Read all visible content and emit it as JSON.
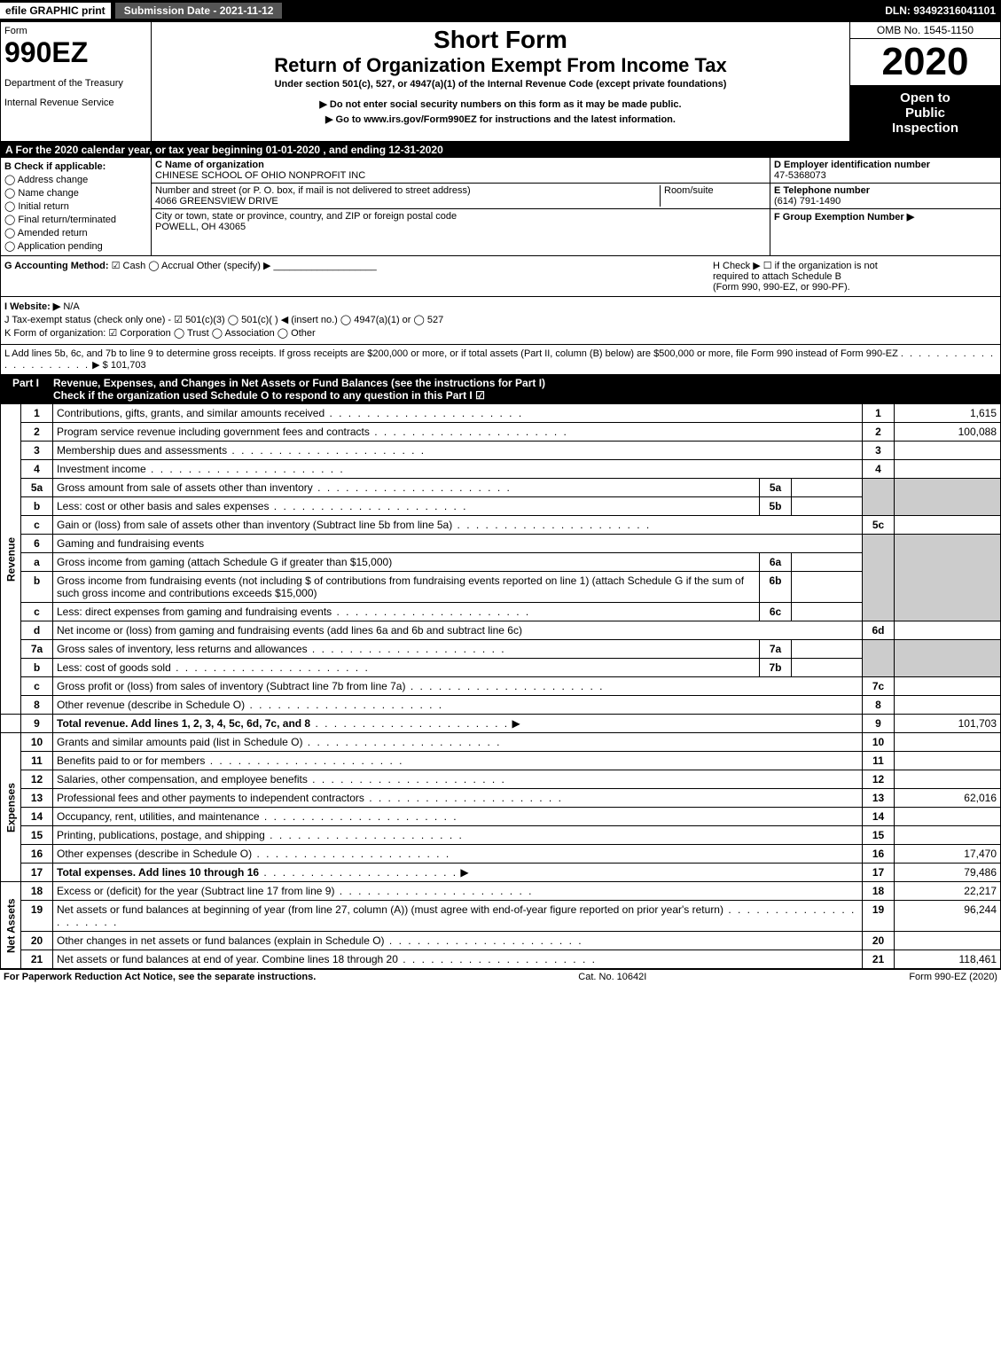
{
  "top": {
    "efile": "efile GRAPHIC print",
    "submission_date_label": "Submission Date - 2021-11-12",
    "dln": "DLN: 93492316041101"
  },
  "header": {
    "form_word": "Form",
    "form_number": "990EZ",
    "dept1": "Department of the Treasury",
    "dept2": "Internal Revenue Service",
    "short_form": "Short Form",
    "title": "Return of Organization Exempt From Income Tax",
    "subtitle": "Under section 501(c), 527, or 4947(a)(1) of the Internal Revenue Code (except private foundations)",
    "warn": "▶ Do not enter social security numbers on this form as it may be made public.",
    "goto": "▶ Go to www.irs.gov/Form990EZ for instructions and the latest information.",
    "omb": "OMB No. 1545-1150",
    "year": "2020",
    "inspection1": "Open to",
    "inspection2": "Public",
    "inspection3": "Inspection"
  },
  "period": "A For the 2020 calendar year, or tax year beginning 01-01-2020 , and ending 12-31-2020",
  "sectionB": {
    "label": "B Check if applicable:",
    "opts": [
      "Address change",
      "Name change",
      "Initial return",
      "Final return/terminated",
      "Amended return",
      "Application pending"
    ]
  },
  "sectionC": {
    "name_label": "C Name of organization",
    "name": "CHINESE SCHOOL OF OHIO NONPROFIT INC",
    "addr_label": "Number and street (or P. O. box, if mail is not delivered to street address)",
    "addr": "4066 GREENSVIEW DRIVE",
    "room_label": "Room/suite",
    "city_label": "City or town, state or province, country, and ZIP or foreign postal code",
    "city": "POWELL, OH  43065"
  },
  "sectionD": {
    "ein_label": "D Employer identification number",
    "ein": "47-5368073",
    "tel_label": "E Telephone number",
    "tel": "(614) 791-1490",
    "group_label": "F Group Exemption Number ▶"
  },
  "sectionG": {
    "label": "G Accounting Method:",
    "cash": "Cash",
    "accrual": "Accrual",
    "other": "Other (specify) ▶"
  },
  "sectionH": {
    "line1": "H Check ▶ ☐ if the organization is not",
    "line2": "required to attach Schedule B",
    "line3": "(Form 990, 990-EZ, or 990-PF)."
  },
  "sectionI": {
    "label": "I Website: ▶",
    "val": "N/A"
  },
  "sectionJ": "J Tax-exempt status (check only one) - ☑ 501(c)(3) ◯ 501(c)( ) ◀ (insert no.) ◯ 4947(a)(1) or ◯ 527",
  "sectionK": "K Form of organization: ☑ Corporation  ◯ Trust  ◯ Association  ◯ Other",
  "sectionL": {
    "text": "L Add lines 5b, 6c, and 7b to line 9 to determine gross receipts. If gross receipts are $200,000 or more, or if total assets (Part II, column (B) below) are $500,000 or more, file Form 990 instead of Form 990-EZ",
    "amount": "▶ $ 101,703"
  },
  "partI": {
    "label": "Part I",
    "title": "Revenue, Expenses, and Changes in Net Assets or Fund Balances (see the instructions for Part I)",
    "check_o": "Check if the organization used Schedule O to respond to any question in this Part I",
    "check_o_mark": "☑"
  },
  "vlabels": {
    "revenue": "Revenue",
    "expenses": "Expenses",
    "net": "Net Assets"
  },
  "rows": {
    "r1": {
      "n": "1",
      "d": "Contributions, gifts, grants, and similar amounts received",
      "ln": "1",
      "v": "1,615"
    },
    "r2": {
      "n": "2",
      "d": "Program service revenue including government fees and contracts",
      "ln": "2",
      "v": "100,088"
    },
    "r3": {
      "n": "3",
      "d": "Membership dues and assessments",
      "ln": "3",
      "v": ""
    },
    "r4": {
      "n": "4",
      "d": "Investment income",
      "ln": "4",
      "v": ""
    },
    "r5a": {
      "n": "5a",
      "d": "Gross amount from sale of assets other than inventory",
      "sn": "5a"
    },
    "r5b": {
      "n": "b",
      "d": "Less: cost or other basis and sales expenses",
      "sn": "5b"
    },
    "r5c": {
      "n": "c",
      "d": "Gain or (loss) from sale of assets other than inventory (Subtract line 5b from line 5a)",
      "ln": "5c",
      "v": ""
    },
    "r6": {
      "n": "6",
      "d": "Gaming and fundraising events"
    },
    "r6a": {
      "n": "a",
      "d": "Gross income from gaming (attach Schedule G if greater than $15,000)",
      "sn": "6a"
    },
    "r6b": {
      "n": "b",
      "d": "Gross income from fundraising events (not including $              of contributions from fundraising events reported on line 1) (attach Schedule G if the sum of such gross income and contributions exceeds $15,000)",
      "sn": "6b"
    },
    "r6c": {
      "n": "c",
      "d": "Less: direct expenses from gaming and fundraising events",
      "sn": "6c"
    },
    "r6d": {
      "n": "d",
      "d": "Net income or (loss) from gaming and fundraising events (add lines 6a and 6b and subtract line 6c)",
      "ln": "6d",
      "v": ""
    },
    "r7a": {
      "n": "7a",
      "d": "Gross sales of inventory, less returns and allowances",
      "sn": "7a"
    },
    "r7b": {
      "n": "b",
      "d": "Less: cost of goods sold",
      "sn": "7b"
    },
    "r7c": {
      "n": "c",
      "d": "Gross profit or (loss) from sales of inventory (Subtract line 7b from line 7a)",
      "ln": "7c",
      "v": ""
    },
    "r8": {
      "n": "8",
      "d": "Other revenue (describe in Schedule O)",
      "ln": "8",
      "v": ""
    },
    "r9": {
      "n": "9",
      "d": "Total revenue. Add lines 1, 2, 3, 4, 5c, 6d, 7c, and 8",
      "ln": "9",
      "v": "101,703"
    },
    "r10": {
      "n": "10",
      "d": "Grants and similar amounts paid (list in Schedule O)",
      "ln": "10",
      "v": ""
    },
    "r11": {
      "n": "11",
      "d": "Benefits paid to or for members",
      "ln": "11",
      "v": ""
    },
    "r12": {
      "n": "12",
      "d": "Salaries, other compensation, and employee benefits",
      "ln": "12",
      "v": ""
    },
    "r13": {
      "n": "13",
      "d": "Professional fees and other payments to independent contractors",
      "ln": "13",
      "v": "62,016"
    },
    "r14": {
      "n": "14",
      "d": "Occupancy, rent, utilities, and maintenance",
      "ln": "14",
      "v": ""
    },
    "r15": {
      "n": "15",
      "d": "Printing, publications, postage, and shipping",
      "ln": "15",
      "v": ""
    },
    "r16": {
      "n": "16",
      "d": "Other expenses (describe in Schedule O)",
      "ln": "16",
      "v": "17,470"
    },
    "r17": {
      "n": "17",
      "d": "Total expenses. Add lines 10 through 16",
      "ln": "17",
      "v": "79,486"
    },
    "r18": {
      "n": "18",
      "d": "Excess or (deficit) for the year (Subtract line 17 from line 9)",
      "ln": "18",
      "v": "22,217"
    },
    "r19": {
      "n": "19",
      "d": "Net assets or fund balances at beginning of year (from line 27, column (A)) (must agree with end-of-year figure reported on prior year's return)",
      "ln": "19",
      "v": "96,244"
    },
    "r20": {
      "n": "20",
      "d": "Other changes in net assets or fund balances (explain in Schedule O)",
      "ln": "20",
      "v": ""
    },
    "r21": {
      "n": "21",
      "d": "Net assets or fund balances at end of year. Combine lines 18 through 20",
      "ln": "21",
      "v": "118,461"
    }
  },
  "footer": {
    "left": "For Paperwork Reduction Act Notice, see the separate instructions.",
    "center": "Cat. No. 10642I",
    "right": "Form 990-EZ (2020)"
  },
  "colors": {
    "black": "#000000",
    "white": "#ffffff",
    "shade": "#cccccc",
    "darkgrey": "#555555"
  }
}
